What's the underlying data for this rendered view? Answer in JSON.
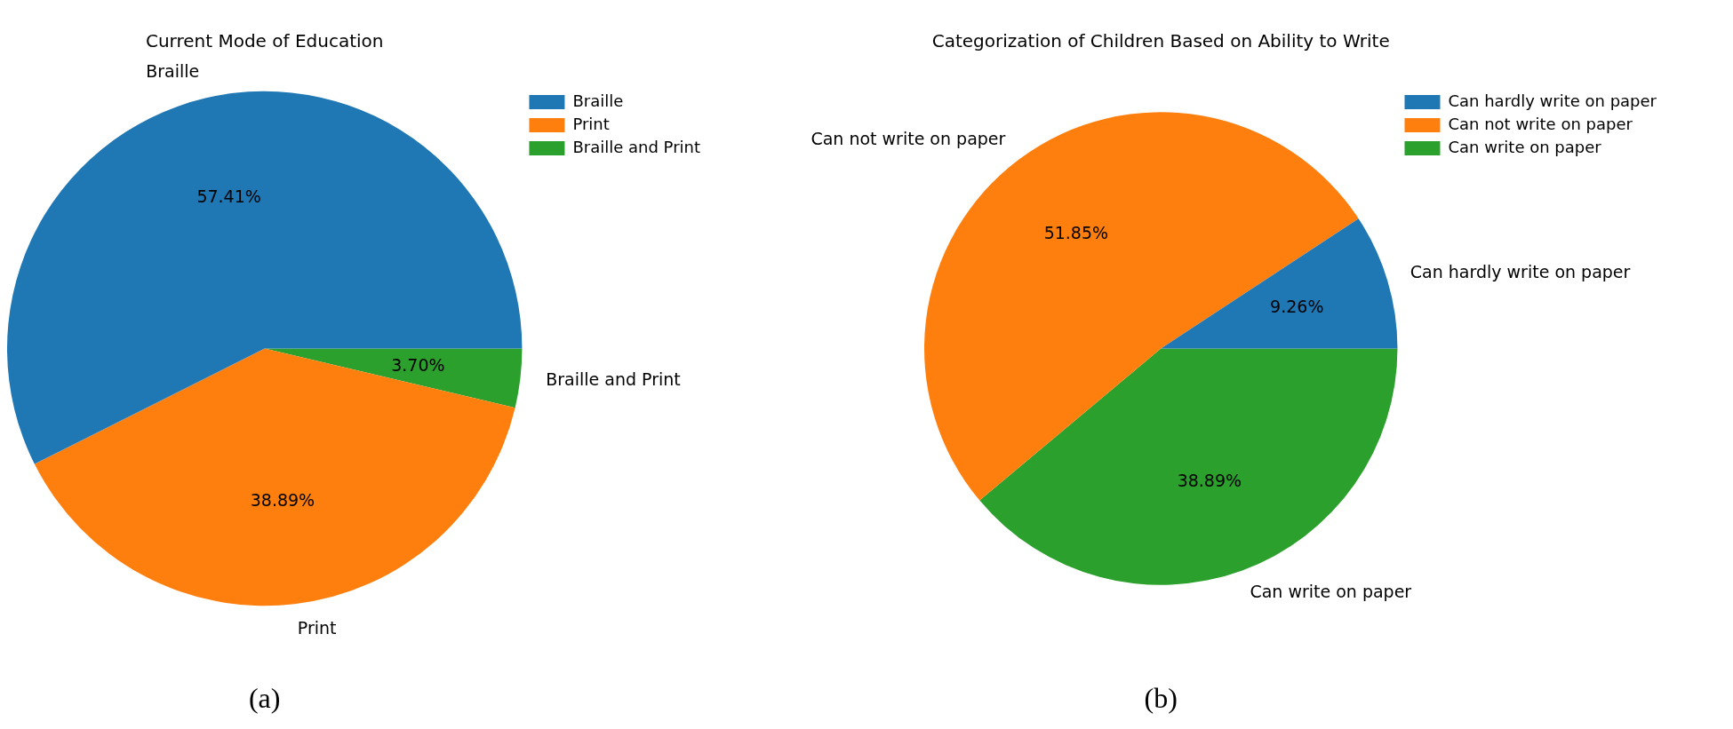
{
  "chart_data": [
    {
      "type": "pie",
      "title": "Current Mode of Education",
      "categories": [
        "Braille",
        "Print",
        "Braille and Print"
      ],
      "values": [
        57.41,
        38.89,
        3.7
      ],
      "value_labels": [
        "57.41%",
        "38.89%",
        "3.70%"
      ],
      "colors": [
        "#1f77b4",
        "#ff7f0e",
        "#2ca02c"
      ],
      "legend": "top right",
      "annotations": [
        "(a)"
      ]
    },
    {
      "type": "pie",
      "title": "Categorization of Children Based on Ability to Write",
      "categories": [
        "Can hardly write on paper",
        "Can not write on paper",
        "Can write on paper"
      ],
      "values": [
        9.26,
        51.85,
        38.89
      ],
      "value_labels": [
        "9.26%",
        "51.85%",
        "38.89%"
      ],
      "colors": [
        "#1f77b4",
        "#ff7f0e",
        "#2ca02c"
      ],
      "legend": "top right",
      "annotations": [
        "(b)"
      ]
    }
  ]
}
